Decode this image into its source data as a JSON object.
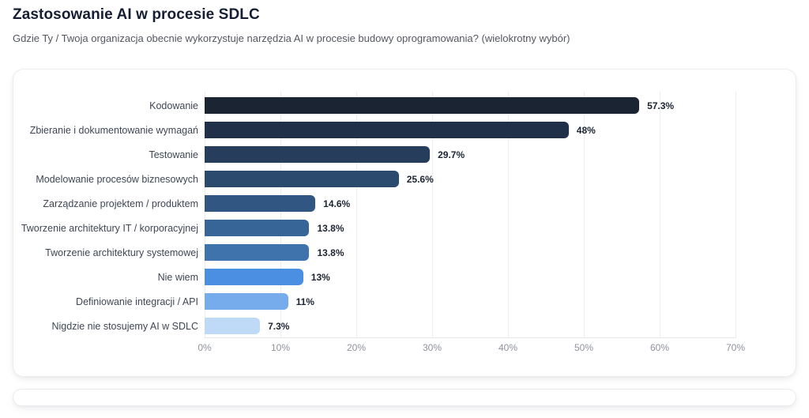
{
  "header": {
    "title": "Zastosowanie AI w procesie SDLC",
    "subtitle": "Gdzie Ty / Twoja organizacja obecnie wykorzystuje narzędzia AI w procesie budowy oprogramowania? (wielokrotny wybór)"
  },
  "chart_data": {
    "type": "bar",
    "orientation": "horizontal",
    "title": "Zastosowanie AI w procesie SDLC",
    "categories": [
      "Kodowanie",
      "Zbieranie i dokumentowanie wymagań",
      "Testowanie",
      "Modelowanie procesów biznesowych",
      "Zarządzanie projektem / produktem",
      "Tworzenie architektury IT / korporacyjnej",
      "Tworzenie architektury systemowej",
      "Nie wiem",
      "Definiowanie integracji / API",
      "Nigdzie nie stosujemy AI w SDLC"
    ],
    "values": [
      57.3,
      48,
      29.7,
      25.6,
      14.6,
      13.8,
      13.8,
      13,
      11,
      7.3
    ],
    "value_labels": [
      "57.3%",
      "48%",
      "29.7%",
      "25.6%",
      "14.6%",
      "13.8%",
      "13.8%",
      "13%",
      "11%",
      "7.3%"
    ],
    "bar_colors": [
      "#1b2433",
      "#203048",
      "#263d5b",
      "#2b4a6e",
      "#315682",
      "#376597",
      "#3e73ab",
      "#4a8fe2",
      "#77acec",
      "#bedaf6"
    ],
    "xlim": [
      0,
      70
    ],
    "x_ticks": [
      "0%",
      "10%",
      "20%",
      "30%",
      "40%",
      "50%",
      "60%",
      "70%"
    ],
    "grid": true,
    "legend": "none"
  },
  "colors": {
    "grid_line": "#ededf1",
    "axis_text": "#8e939c",
    "category_text": "#3f4654",
    "value_text": "#1c2433",
    "title_text": "#151e32",
    "subtitle_text": "#54575f",
    "card_border": "#ececee"
  }
}
